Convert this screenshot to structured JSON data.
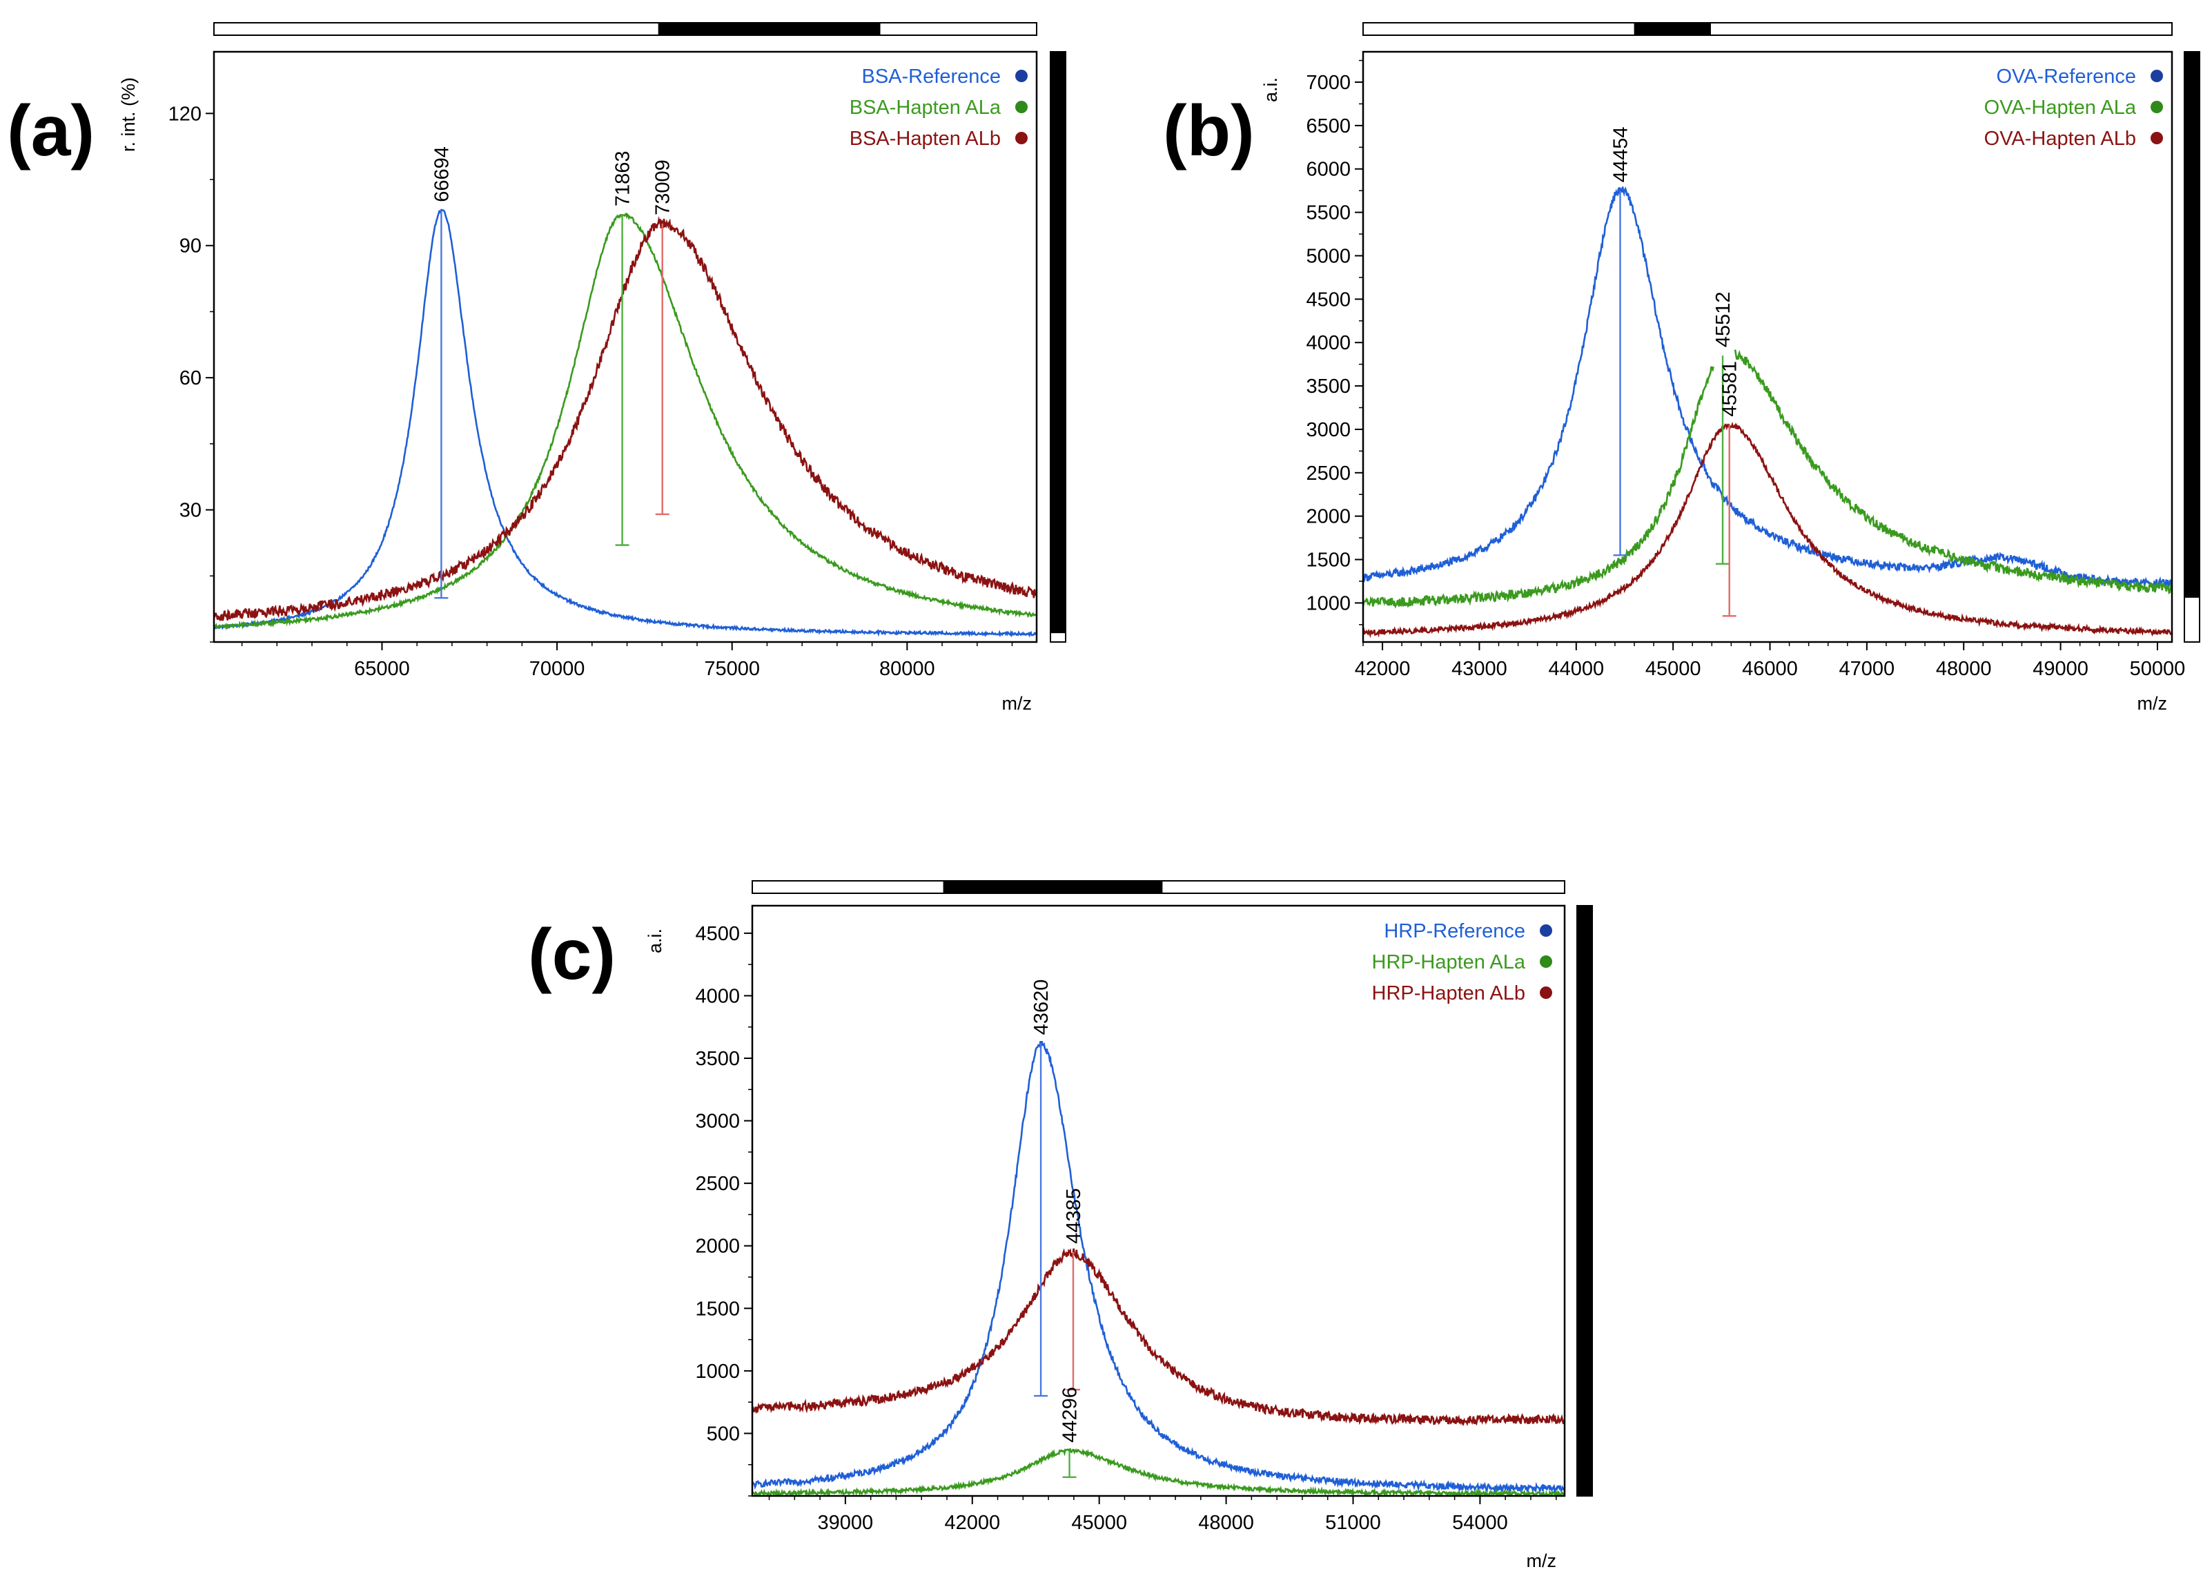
{
  "colors": {
    "blue": "#1f5fd6",
    "green": "#3a9a1e",
    "red": "#8b1212",
    "marker_blue": "#4a78e0",
    "marker_green": "#4fb040",
    "marker_red": "#e06a6a",
    "dot_blue": "#1a3fa0",
    "dot_green": "#2f8a1a",
    "dot_red": "#8b1212"
  },
  "chart_data": [
    {
      "id": "a",
      "panel_label": "(a)",
      "type": "line",
      "xlabel": "m/z",
      "ylabel": "r. int. (%)",
      "xlim": [
        60200,
        83700
      ],
      "ylim": [
        0,
        134
      ],
      "xticks": [
        65000,
        70000,
        75000,
        80000
      ],
      "xtick_labels": [
        "65000",
        "70000",
        "75000",
        "80000"
      ],
      "yticks": [
        30,
        60,
        90,
        120
      ],
      "ytick_labels": [
        "30",
        "60",
        "90",
        "120"
      ],
      "overview": {
        "start": 0.54,
        "end": 0.81
      },
      "right_bar_level": 0.985,
      "series": [
        {
          "name": "BSA-Reference",
          "color": "blue",
          "baseline": 1.5,
          "peak_x": 66694,
          "peak_y": 98,
          "width_left": 900,
          "width_right": 950,
          "tail": 4.8,
          "tail_width": 3500,
          "noise": 0.3
        },
        {
          "name": "BSA-Hapten ALa",
          "color": "green",
          "baseline": 1.2,
          "peak_x": 71863,
          "peak_y": 97,
          "width_left": 1850,
          "width_right": 2750,
          "tail": 0,
          "tail_width": 1,
          "noise": 0.4
        },
        {
          "name": "BSA-Hapten ALb",
          "color": "red",
          "baseline": 2.5,
          "peak_x": 73009,
          "peak_y": 95,
          "width_left": 2500,
          "width_right": 3400,
          "tail": 0,
          "tail_width": 1,
          "noise": 1.2
        }
      ],
      "peaks": [
        {
          "label": "66694",
          "x": 66694,
          "y_top": 98,
          "y_bottom": 10,
          "color": "blue"
        },
        {
          "label": "71863",
          "x": 71863,
          "y_top": 97,
          "y_bottom": 22,
          "color": "green"
        },
        {
          "label": "73009",
          "x": 73009,
          "y_top": 95,
          "y_bottom": 29,
          "color": "red"
        }
      ],
      "legend": [
        {
          "label": "BSA-Reference",
          "color": "blue"
        },
        {
          "label": "BSA-Hapten ALa",
          "color": "green"
        },
        {
          "label": "BSA-Hapten ALb",
          "color": "red"
        }
      ]
    },
    {
      "id": "b",
      "panel_label": "(b)",
      "type": "line",
      "xlabel": "m/z",
      "ylabel": "a.i.",
      "xlim": [
        41800,
        50150
      ],
      "ylim": [
        550,
        7350
      ],
      "xticks": [
        42000,
        43000,
        44000,
        45000,
        46000,
        47000,
        48000,
        49000,
        50000
      ],
      "xtick_labels": [
        "42000",
        "43000",
        "44000",
        "45000",
        "46000",
        "47000",
        "48000",
        "49000",
        "50000"
      ],
      "yticks": [
        1000,
        1500,
        2000,
        2500,
        3000,
        3500,
        4000,
        4500,
        5000,
        5500,
        6000,
        6500,
        7000
      ],
      "ytick_labels": [
        "1000",
        "1500",
        "2000",
        "2500",
        "3000",
        "3500",
        "4000",
        "4500",
        "5000",
        "5500",
        "6000",
        "6500",
        "7000"
      ],
      "overview": {
        "start": 0.335,
        "end": 0.43
      },
      "right_bar_level": 0.925,
      "series": [
        {
          "name": "OVA-Reference",
          "color": "blue",
          "baseline": 1150,
          "peak_x": 44454,
          "peak_y": 5750,
          "width_left": 480,
          "width_right": 520,
          "tail": 350,
          "tail_width": 2500,
          "noise": 45,
          "bump_x": 48400,
          "bump_y": 220,
          "bump_w": 600
        },
        {
          "name": "OVA-Hapten ALa",
          "color": "green",
          "baseline": 950,
          "peak_x": 45512,
          "peak_y": 3850,
          "width_left": 500,
          "width_right": 900,
          "tail": 500,
          "tail_width": 3000,
          "noise": 55,
          "gap": [
            45420,
            45640
          ]
        },
        {
          "name": "OVA-Hapten ALb",
          "color": "red",
          "baseline": 600,
          "peak_x": 45581,
          "peak_y": 3050,
          "width_left": 600,
          "width_right": 750,
          "tail": 0,
          "tail_width": 1,
          "noise": 30
        }
      ],
      "peaks": [
        {
          "label": "44454",
          "x": 44454,
          "y_top": 5750,
          "y_bottom": 1550,
          "color": "blue"
        },
        {
          "label": "45512",
          "x": 45512,
          "y_top": 3850,
          "y_bottom": 1450,
          "color": "green"
        },
        {
          "label": "45581",
          "x": 45581,
          "y_top": 3050,
          "y_bottom": 850,
          "color": "red"
        }
      ],
      "legend": [
        {
          "label": "OVA-Reference",
          "color": "blue"
        },
        {
          "label": "OVA-Hapten ALa",
          "color": "green"
        },
        {
          "label": "OVA-Hapten ALb",
          "color": "red"
        }
      ]
    },
    {
      "id": "c",
      "panel_label": "(c)",
      "type": "line",
      "xlabel": "m/z",
      "ylabel": "a.i.",
      "xlim": [
        36800,
        56000
      ],
      "ylim": [
        0,
        4720
      ],
      "xticks": [
        39000,
        42000,
        45000,
        48000,
        51000,
        54000
      ],
      "xtick_labels": [
        "39000",
        "42000",
        "45000",
        "48000",
        "51000",
        "54000"
      ],
      "yticks": [
        500,
        1000,
        1500,
        2000,
        2500,
        3000,
        3500,
        4000,
        4500
      ],
      "ytick_labels": [
        "500",
        "1000",
        "1500",
        "2000",
        "2500",
        "3000",
        "3500",
        "4000",
        "4500"
      ],
      "overview": {
        "start": 0.235,
        "end": 0.505
      },
      "right_bar_level": 1.0,
      "series": [
        {
          "name": "HRP-Reference",
          "color": "blue",
          "baseline": 30,
          "peak_x": 43620,
          "peak_y": 3620,
          "width_left": 900,
          "width_right": 1100,
          "tail": 0,
          "tail_width": 1,
          "noise": 25
        },
        {
          "name": "HRP-Hapten ALa",
          "color": "green",
          "baseline": 10,
          "peak_x": 44296,
          "peak_y": 360,
          "width_left": 1300,
          "width_right": 1700,
          "tail": 0,
          "tail_width": 1,
          "noise": 15
        },
        {
          "name": "HRP-Hapten ALb",
          "color": "red",
          "baseline": 650,
          "peak_x": 44385,
          "peak_y": 1950,
          "width_left": 1500,
          "width_right": 1800,
          "tail": -250,
          "tail_width": 9000,
          "noise": 35
        }
      ],
      "peaks": [
        {
          "label": "43620",
          "x": 43620,
          "y_top": 3620,
          "y_bottom": 800,
          "color": "blue"
        },
        {
          "label": "44385",
          "x": 44385,
          "y_top": 1950,
          "y_bottom": 850,
          "color": "red"
        },
        {
          "label": "44296",
          "x": 44296,
          "y_top": 360,
          "y_bottom": 150,
          "color": "green"
        }
      ],
      "legend": [
        {
          "label": "HRP-Reference",
          "color": "blue"
        },
        {
          "label": "HRP-Hapten ALa",
          "color": "green"
        },
        {
          "label": "HRP-Hapten ALb",
          "color": "red"
        }
      ]
    }
  ]
}
